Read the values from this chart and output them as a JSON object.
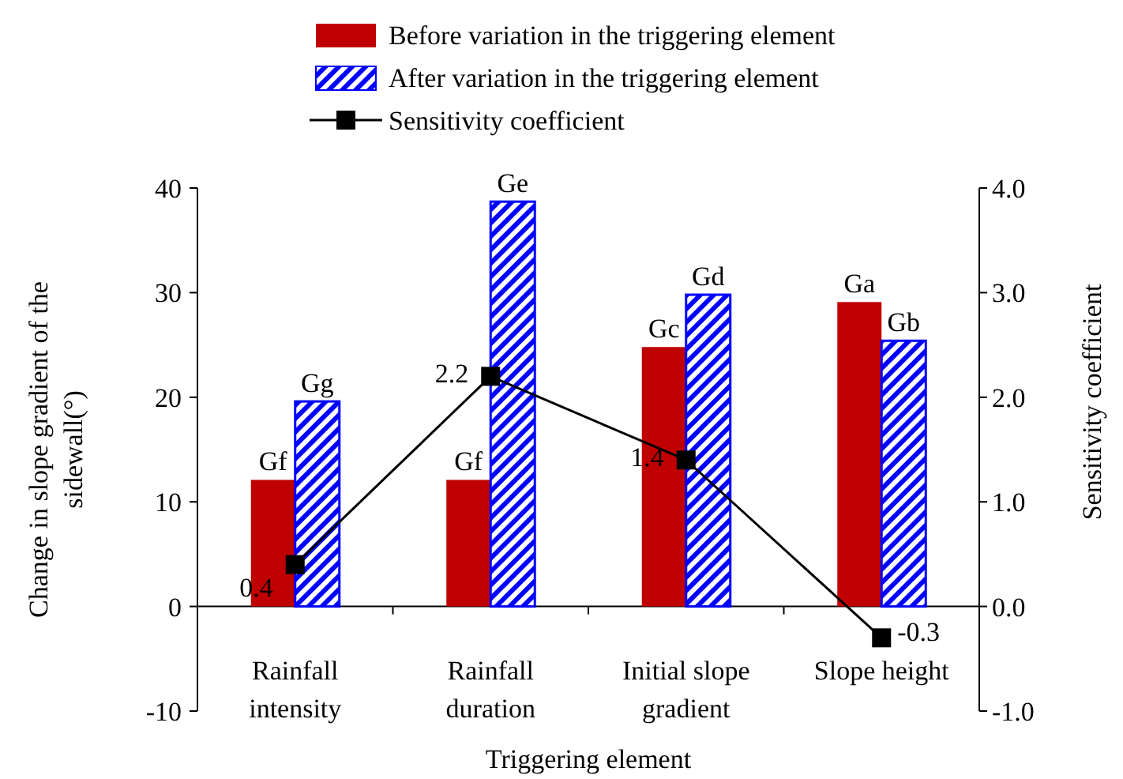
{
  "chart_data": {
    "type": "bar",
    "xlabel": "Triggering element",
    "ylabel": "Change in slope gradient of the sidewall(°)",
    "y2label": "Sensitivity coefficient",
    "categories": [
      "Rainfall intensity",
      "Rainfall duration",
      "Initial slope gradient",
      "Slope height"
    ],
    "series": [
      {
        "name": "Before variation in the triggering element",
        "color": "#c00000",
        "values": [
          12.1,
          12.1,
          24.8,
          29.1
        ],
        "value_labels": [
          "Gf",
          "Gf",
          "Gc",
          "Ga"
        ]
      },
      {
        "name": "After variation in the triggering element",
        "color": "#0000ff",
        "values": [
          19.6,
          38.7,
          29.8,
          25.4
        ],
        "value_labels": [
          "Gg",
          "Ge",
          "Gd",
          "Gb"
        ]
      },
      {
        "name": "Sensitivity coefficient",
        "type": "line",
        "axis": "y2",
        "color": "#000000",
        "values": [
          0.4,
          2.2,
          1.4,
          -0.3
        ],
        "value_labels": [
          "0.4",
          "2.2",
          "1.4",
          "-0.3"
        ],
        "marker": "square"
      }
    ],
    "ylim": [
      -10,
      40
    ],
    "yticks": [
      -10,
      0,
      10,
      20,
      30,
      40
    ],
    "y2lim": [
      -1,
      4
    ],
    "y2ticks": [
      {
        "value": -1,
        "label": "-1.0"
      },
      {
        "value": 0,
        "label": "0.0"
      },
      {
        "value": 1,
        "label": "1.0"
      },
      {
        "value": 2,
        "label": "2.0"
      },
      {
        "value": 3,
        "label": "3.0"
      },
      {
        "value": 4,
        "label": "4.0"
      }
    ],
    "grid": false,
    "legend": "top"
  }
}
